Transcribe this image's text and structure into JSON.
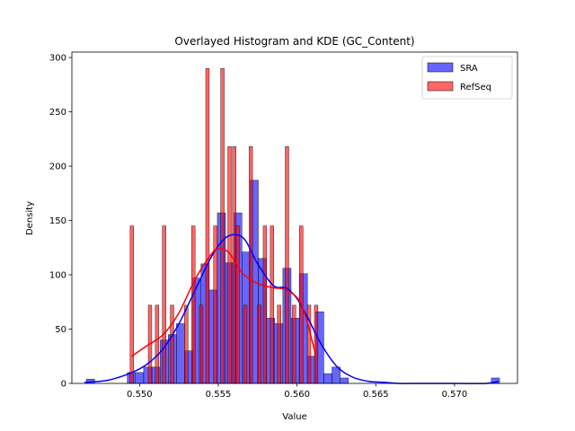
{
  "chart_data": {
    "type": "histogram",
    "title": "Overlayed Histogram and KDE (GC_Content)",
    "xlabel": "Value",
    "ylabel": "Density",
    "xlim": [
      0.5457,
      0.574
    ],
    "ylim": [
      0,
      305
    ],
    "xticks": [
      0.55,
      0.555,
      0.56,
      0.565,
      0.57
    ],
    "xtick_labels": [
      "0.550",
      "0.555",
      "0.560",
      "0.565",
      "0.570"
    ],
    "yticks": [
      0,
      50,
      100,
      150,
      200,
      250,
      300
    ],
    "ytick_labels": [
      "0",
      "50",
      "100",
      "150",
      "200",
      "250",
      "300"
    ],
    "legend": {
      "position": "top-right"
    },
    "series": [
      {
        "name": "SRA",
        "color": "#0000ff",
        "kind": "histogram",
        "bin_width": 0.00052,
        "bins": [
          [
            0.54662,
            4
          ],
          [
            0.54922,
            10
          ],
          [
            0.54974,
            10
          ],
          [
            0.55026,
            15
          ],
          [
            0.55078,
            15
          ],
          [
            0.5513,
            40
          ],
          [
            0.55182,
            45
          ],
          [
            0.55234,
            55
          ],
          [
            0.55286,
            30
          ],
          [
            0.55338,
            97
          ],
          [
            0.5539,
            110
          ],
          [
            0.55442,
            86
          ],
          [
            0.55494,
            157
          ],
          [
            0.55546,
            111
          ],
          [
            0.55598,
            157
          ],
          [
            0.5565,
            121
          ],
          [
            0.55702,
            187
          ],
          [
            0.55754,
            115
          ],
          [
            0.55806,
            60
          ],
          [
            0.55858,
            55
          ],
          [
            0.5591,
            106
          ],
          [
            0.55962,
            60
          ],
          [
            0.56014,
            101
          ],
          [
            0.56066,
            25
          ],
          [
            0.56118,
            66
          ],
          [
            0.5617,
            9
          ],
          [
            0.56222,
            15
          ],
          [
            0.56274,
            5
          ],
          [
            0.57234,
            5
          ]
        ]
      },
      {
        "name": "RefSeq",
        "color": "#ff0000",
        "kind": "histogram",
        "bin_width": 0.000225,
        "bins": [
          [
            0.5494,
            145
          ],
          [
            0.55055,
            72
          ],
          [
            0.551,
            72
          ],
          [
            0.55145,
            145
          ],
          [
            0.55195,
            72
          ],
          [
            0.55285,
            72
          ],
          [
            0.5533,
            145
          ],
          [
            0.5538,
            72
          ],
          [
            0.5542,
            290
          ],
          [
            0.5547,
            145
          ],
          [
            0.55515,
            290
          ],
          [
            0.5556,
            218
          ],
          [
            0.5559,
            218
          ],
          [
            0.5561,
            145
          ],
          [
            0.5566,
            72
          ],
          [
            0.55695,
            218
          ],
          [
            0.5575,
            72
          ],
          [
            0.55785,
            145
          ],
          [
            0.5583,
            145
          ],
          [
            0.55875,
            72
          ],
          [
            0.55925,
            218
          ],
          [
            0.5597,
            72
          ],
          [
            0.56015,
            145
          ],
          [
            0.56065,
            72
          ],
          [
            0.5611,
            72
          ]
        ]
      },
      {
        "name": "SRA KDE",
        "color": "#0000ff",
        "kind": "kde",
        "x": [
          0.5465,
          0.548,
          0.5495,
          0.5505,
          0.5515,
          0.5525,
          0.5535,
          0.5545,
          0.5553,
          0.556,
          0.5567,
          0.5575,
          0.5585,
          0.5593,
          0.56,
          0.5607,
          0.5615,
          0.5625,
          0.5635,
          0.5645,
          0.5655,
          0.5665,
          0.568,
          0.57,
          0.572,
          0.5728
        ],
        "y": [
          1,
          3,
          10,
          18,
          32,
          55,
          85,
          115,
          132,
          137,
          132,
          110,
          90,
          88,
          78,
          60,
          37,
          16,
          6,
          2,
          1,
          0,
          0,
          0,
          0,
          2
        ]
      },
      {
        "name": "RefSeq KDE",
        "color": "#ff0000",
        "kind": "kde",
        "x": [
          0.5495,
          0.5505,
          0.5515,
          0.5525,
          0.5535,
          0.5545,
          0.555,
          0.5557,
          0.5565,
          0.5575,
          0.5585,
          0.5593,
          0.5603,
          0.5612
        ],
        "y": [
          25,
          35,
          45,
          65,
          95,
          118,
          124,
          120,
          102,
          92,
          88,
          86,
          72,
          25
        ]
      }
    ]
  }
}
